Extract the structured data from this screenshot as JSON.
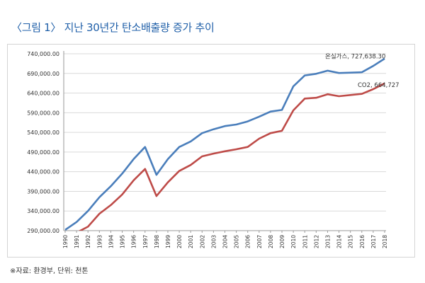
{
  "figure": {
    "title": "〈그림 1〉 지난 30년간 탄소배출량 증가 추이",
    "source": "※자료: 환경부, 단위: 천톤"
  },
  "chart_data": {
    "type": "line",
    "title": "",
    "xlabel": "",
    "ylabel": "",
    "x": [
      "1990",
      "1991",
      "1992",
      "1993",
      "1994",
      "1995",
      "1996",
      "1997",
      "1998",
      "1999",
      "2000",
      "2001",
      "2002",
      "2003",
      "2004",
      "2005",
      "2006",
      "2007",
      "2008",
      "2009",
      "2010",
      "2011",
      "2012",
      "2013",
      "2014",
      "2015",
      "2016",
      "2017",
      "2018"
    ],
    "ylim": [
      290000,
      760000
    ],
    "yticks": [
      "290,000.00",
      "340,000.00",
      "390,000.00",
      "440,000.00",
      "490,000.00",
      "540,000.00",
      "590,000.00",
      "640,000.00",
      "690,000.00",
      "740,000.00"
    ],
    "grid": true,
    "series": [
      {
        "color": "#4a7ebb",
        "values": [
          292000,
          312000,
          340000,
          375000,
          403000,
          435000,
          472000,
          503000,
          432000,
          472000,
          503000,
          517000,
          538000,
          548000,
          556000,
          560000,
          568000,
          580000,
          593000,
          597000,
          657000,
          685000,
          689000,
          697000,
          691000,
          692000,
          693000,
          709000,
          727638
        ]
      },
      {
        "color": "#be4b48",
        "values": [
          268000,
          285000,
          300000,
          333000,
          355000,
          382000,
          418000,
          447000,
          378000,
          413000,
          442000,
          457000,
          479000,
          486000,
          492000,
          497000,
          503000,
          524000,
          538000,
          544000,
          596000,
          626000,
          628000,
          637000,
          632000,
          635000,
          638000,
          650000,
          664727
        ]
      }
    ],
    "annotations": [
      {
        "series": 0,
        "text": "온실가스, 727,638.30"
      },
      {
        "series": 1,
        "text": "CO2, 664,727"
      }
    ]
  }
}
